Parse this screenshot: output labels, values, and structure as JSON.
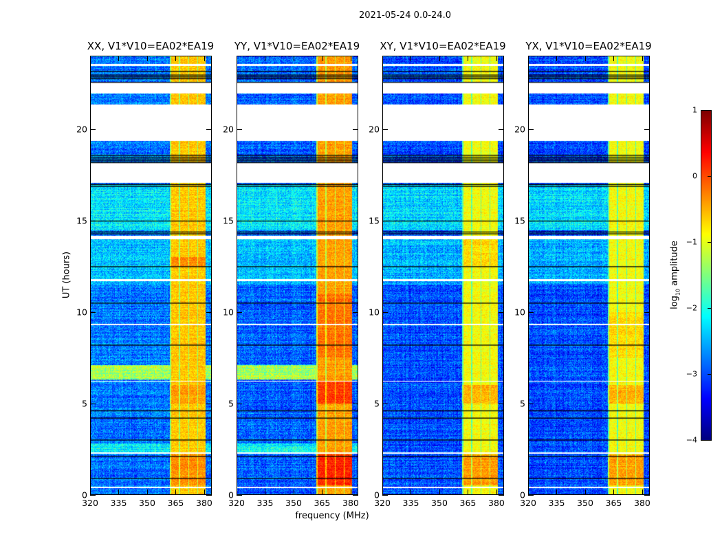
{
  "suptitle": "2021-05-24 0.0-24.0",
  "chart_data": {
    "type": "heatmap",
    "title": "2021-05-24 0.0-24.0",
    "xlabel": "frequency (MHz)",
    "ylabel": "UT (hours)",
    "xlim": [
      320,
      384
    ],
    "ylim": [
      0,
      24
    ],
    "xticks": [
      "320",
      "335",
      "350",
      "365",
      "380"
    ],
    "yticks": [
      "0",
      "5",
      "10",
      "15",
      "20"
    ],
    "colormap": "jet",
    "colorbar": {
      "label_main": "log",
      "label_sub": "10",
      "label_rest": " amplitude",
      "clim": [
        -4,
        1
      ],
      "ticks": [
        "1",
        "0",
        "−1",
        "−2",
        "−3",
        "−4"
      ]
    },
    "flagged_white_hours": [
      [
        19.4,
        21.4
      ],
      [
        17.1,
        18.2
      ],
      [
        22.0,
        22.6
      ],
      [
        11.7,
        11.8
      ],
      [
        14.0,
        14.2
      ],
      [
        2.25,
        2.3
      ],
      [
        0.35,
        0.45
      ],
      [
        23.5,
        23.6
      ],
      [
        9.3,
        9.35
      ],
      [
        6.2,
        6.25
      ]
    ],
    "black_line_hours": [
      18.2,
      18.3,
      18.4,
      18.5,
      18.6,
      22.6,
      22.8,
      22.9,
      23.0,
      23.2,
      14.3,
      14.4,
      15.0,
      16.9,
      17.0,
      10.5,
      8.2,
      4.6,
      4.2,
      3.0,
      0.9,
      2.1,
      12.5
    ],
    "rfi_band_mhz": [
      362,
      381
    ],
    "panels": [
      {
        "title": "XX, V1*V10=EA02*EA19",
        "base_level": -2.8,
        "band_level": -0.6,
        "band_extra": [
          [
            0.5,
            2.2,
            0.3
          ],
          [
            5.0,
            6.0,
            0.2
          ],
          [
            12.5,
            13.0,
            0.3
          ]
        ],
        "segments": [
          [
            6.3,
            7.1,
            -1.3
          ],
          [
            2.25,
            2.8,
            -2.1
          ],
          [
            14.5,
            17.0,
            -2.2
          ],
          [
            11.5,
            14.0,
            -2.4
          ]
        ]
      },
      {
        "title": "YY, V1*V10=EA02*EA19",
        "base_level": -2.9,
        "band_level": -0.4,
        "band_extra": [
          [
            0.5,
            2.2,
            0.6
          ],
          [
            5.0,
            6.2,
            0.5
          ],
          [
            7.5,
            11.0,
            0.2
          ]
        ],
        "segments": [
          [
            6.3,
            7.1,
            -1.3
          ],
          [
            2.25,
            2.8,
            -2.1
          ],
          [
            14.5,
            17.0,
            -2.2
          ],
          [
            11.5,
            14.0,
            -2.4
          ]
        ]
      },
      {
        "title": "XY, V1*V10=EA02*EA19",
        "base_level": -3.0,
        "band_level": -0.9,
        "band_extra": [
          [
            0.5,
            2.2,
            0.5
          ],
          [
            5.0,
            6.0,
            0.4
          ],
          [
            12.5,
            14.0,
            0.2
          ]
        ],
        "segments": [
          [
            14.5,
            17.0,
            -2.3
          ],
          [
            11.5,
            14.0,
            -2.5
          ]
        ]
      },
      {
        "title": "YX, V1*V10=EA02*EA19",
        "base_level": -3.0,
        "band_level": -0.9,
        "band_extra": [
          [
            0.5,
            2.2,
            0.5
          ],
          [
            5.0,
            6.0,
            0.4
          ],
          [
            7.5,
            10.0,
            0.2
          ]
        ],
        "segments": [
          [
            14.5,
            17.0,
            -2.3
          ],
          [
            11.5,
            14.0,
            -2.5
          ]
        ]
      }
    ]
  }
}
